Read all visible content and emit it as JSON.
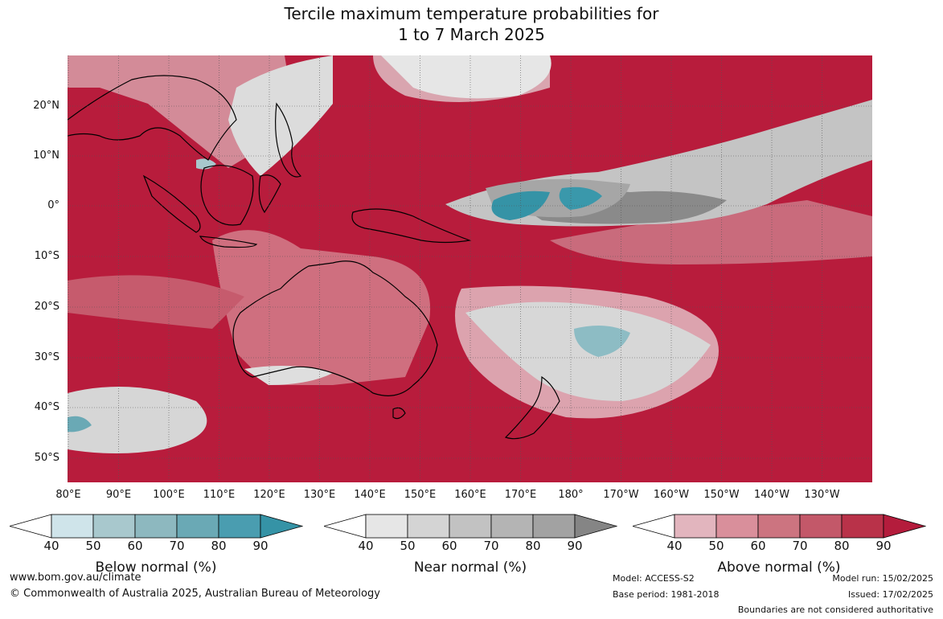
{
  "title": {
    "line1": "Tercile maximum temperature probabilities for",
    "line2": "1 to 7 March 2025"
  },
  "lat_labels": [
    "20°N",
    "10°N",
    "0°",
    "10°S",
    "20°S",
    "30°S",
    "40°S",
    "50°S"
  ],
  "lon_labels": [
    "80°E",
    "90°E",
    "100°E",
    "110°E",
    "120°E",
    "130°E",
    "140°E",
    "150°E",
    "160°E",
    "170°E",
    "180°",
    "170°W",
    "160°W",
    "150°W",
    "140°W",
    "130°W"
  ],
  "colorbars": [
    {
      "label": "Below normal (%)",
      "ticks": [
        "40",
        "50",
        "60",
        "70",
        "80",
        "90"
      ],
      "colors": [
        "#ffffff",
        "#cfe4ea",
        "#a8c8cd",
        "#8db8bf",
        "#6aa9b5",
        "#4a9db0",
        "#3593a6"
      ]
    },
    {
      "label": "Near normal (%)",
      "ticks": [
        "40",
        "50",
        "60",
        "70",
        "80",
        "90"
      ],
      "colors": [
        "#ffffff",
        "#e6e6e6",
        "#d4d4d4",
        "#c2c2c2",
        "#b4b4b4",
        "#a2a2a2",
        "#858585"
      ]
    },
    {
      "label": "Above normal (%)",
      "ticks": [
        "40",
        "50",
        "60",
        "70",
        "80",
        "90"
      ],
      "colors": [
        "#ffffff",
        "#e2b5be",
        "#d98f9b",
        "#cc7480",
        "#c35869",
        "#b93249",
        "#b41c3c"
      ]
    }
  ],
  "footer": {
    "url": "www.bom.gov.au/climate",
    "copyright": "© Commonwealth of Australia 2025, Australian Bureau of Meteorology",
    "model": "Model: ACCESS-S2",
    "base_period": "Base period: 1981-2018",
    "model_run": "Model run: 15/02/2025",
    "issued": "Issued: 17/02/2025",
    "disclaimer": "Boundaries are not considered authoritative"
  }
}
